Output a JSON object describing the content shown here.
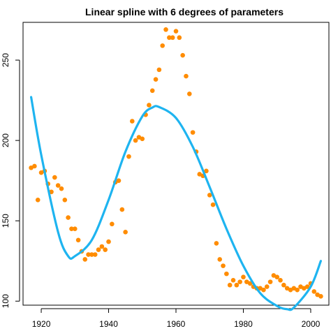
{
  "chart_data": {
    "type": "scatter",
    "title": "Linear spline with 6 degrees of parameters",
    "xlabel": "",
    "ylabel": "",
    "xlim": [
      1914.6,
      2005.4
    ],
    "ylim": [
      97.5,
      273.5
    ],
    "xticks": [
      1920,
      1940,
      1960,
      1980,
      2000
    ],
    "yticks": [
      100,
      150,
      200,
      250
    ],
    "grid": false,
    "legend": "none",
    "points_color": "#FF8C00",
    "curve_color": "#1EB4F0",
    "series": [
      {
        "kind": "points",
        "x": [
          1917,
          1918,
          1919,
          1920,
          1921,
          1922,
          1923,
          1924,
          1925,
          1926,
          1927,
          1928,
          1929,
          1930,
          1931,
          1932,
          1933,
          1934,
          1935,
          1936,
          1937,
          1938,
          1939,
          1940,
          1941,
          1942,
          1943,
          1944,
          1945,
          1946,
          1947,
          1948,
          1949,
          1950,
          1951,
          1952,
          1953,
          1954,
          1955,
          1956,
          1957,
          1958,
          1959,
          1960,
          1961,
          1962,
          1963,
          1964,
          1965,
          1966,
          1967,
          1968,
          1969,
          1970,
          1971,
          1972,
          1973,
          1974,
          1975,
          1976,
          1977,
          1978,
          1979,
          1980,
          1981,
          1982,
          1983,
          1984,
          1985,
          1986,
          1987,
          1988,
          1989,
          1990,
          1991,
          1992,
          1993,
          1994,
          1995,
          1996,
          1997,
          1998,
          1999,
          2000,
          2001,
          2002,
          2003
        ],
        "y": [
          183,
          184,
          163,
          180,
          181,
          173,
          168,
          177,
          172,
          170,
          163,
          152,
          145,
          145,
          138,
          131,
          126,
          129,
          129,
          129,
          132,
          134,
          132,
          137,
          148,
          174,
          175,
          157,
          143,
          190,
          212,
          200,
          202,
          201,
          216,
          222,
          231,
          238,
          244,
          259,
          269,
          264,
          264,
          268,
          264,
          253,
          240,
          229,
          205,
          193,
          179,
          178,
          181,
          166,
          160,
          136,
          126,
          122,
          117,
          110,
          113,
          110,
          112,
          115,
          112,
          111,
          109,
          108,
          108,
          107,
          109,
          112,
          116,
          115,
          113,
          110,
          108,
          107,
          108,
          107,
          109,
          108,
          109,
          111,
          106,
          104,
          103
        ]
      },
      {
        "kind": "curve",
        "x": [
          1917,
          1920,
          1925,
          1928,
          1930,
          1935,
          1940,
          1945,
          1950,
          1953,
          1955,
          1960,
          1965,
          1970,
          1975,
          1980,
          1985,
          1990,
          1993,
          1995,
          2000,
          2003
        ],
        "y": [
          227,
          191,
          143,
          128,
          128,
          138,
          163,
          193,
          215,
          220.5,
          220.8,
          214,
          196,
          171,
          145,
          122,
          105,
          97,
          95,
          96,
          109,
          125
        ]
      }
    ]
  }
}
